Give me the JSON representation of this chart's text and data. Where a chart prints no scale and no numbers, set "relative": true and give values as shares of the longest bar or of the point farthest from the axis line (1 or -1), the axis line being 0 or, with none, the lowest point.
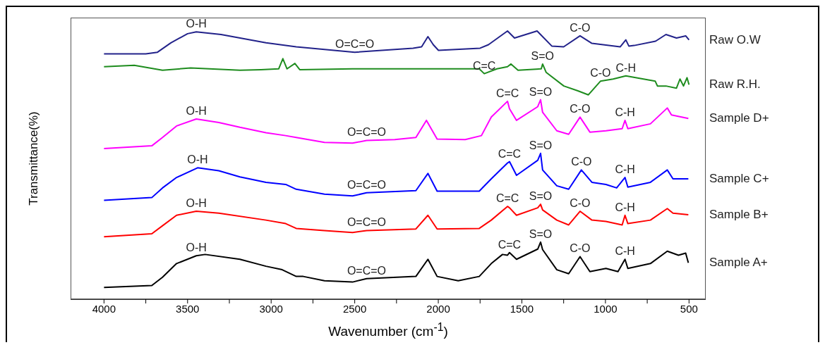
{
  "chart_data": {
    "type": "line",
    "relative": true,
    "xlabel": "Wavenumber (cm$^{-1}$)",
    "ylabel": "Transmittance(%)",
    "xlim": [
      4200,
      400
    ],
    "xticks": [
      4000,
      {
        "value": 3750,
        "label": null
      },
      3500,
      {
        "value": 3250,
        "label": null
      },
      3000,
      {
        "value": 2750,
        "label": null
      },
      2500,
      {
        "value": 2250,
        "label": null
      },
      2000,
      {
        "value": 1750,
        "label": null
      },
      1500,
      {
        "value": 1250,
        "label": null
      },
      1000,
      {
        "value": 750,
        "label": null
      },
      500
    ],
    "grid": false,
    "marker": "none",
    "line_style": "solid",
    "series": [
      {
        "name": "Raw O.W",
        "color": "#22228a",
        "x": [
          4000,
          3750,
          3680,
          3600,
          3500,
          3448,
          3300,
          3031,
          2850,
          2500,
          2151,
          2100,
          2062,
          2030,
          1999,
          1750,
          1700,
          1586,
          1544,
          1409,
          1321,
          1250,
          1152,
          1081,
          912,
          878,
          860,
          828,
          700,
          638,
          575,
          520,
          500
        ],
        "values": [
          0.915,
          0.915,
          0.921,
          0.956,
          0.99,
          0.997,
          0.987,
          0.956,
          0.941,
          0.921,
          0.936,
          0.941,
          0.979,
          0.949,
          0.928,
          0.936,
          0.949,
          1.0,
          0.974,
          1.0,
          0.944,
          0.941,
          0.982,
          0.954,
          0.941,
          0.967,
          0.944,
          0.946,
          0.962,
          0.987,
          0.974,
          0.982,
          0.967
        ]
      },
      {
        "name": "Raw R.H.",
        "color": "#1e8c1e",
        "x": [
          4000,
          3819,
          3650,
          3482,
          3187,
          3061,
          2955,
          2930,
          2905,
          2858,
          2829,
          2513,
          2092,
          1755,
          1725,
          1649,
          1586,
          1565,
          1523,
          1384,
          1376,
          1355,
          1249,
          1165,
          1102,
          1030,
          954,
          878,
          702,
          689,
          638,
          575,
          554,
          533,
          512,
          500
        ],
        "values": [
          0.867,
          0.872,
          0.854,
          0.862,
          0.854,
          0.856,
          0.859,
          0.897,
          0.859,
          0.879,
          0.856,
          0.859,
          0.859,
          0.859,
          0.841,
          0.859,
          0.867,
          0.877,
          0.854,
          0.859,
          0.877,
          0.846,
          0.795,
          0.777,
          0.762,
          0.813,
          0.821,
          0.833,
          0.813,
          0.795,
          0.795,
          0.787,
          0.821,
          0.795,
          0.826,
          0.8
        ]
      },
      {
        "name": "Sample D+",
        "color": "#ff00ff",
        "x": [
          4000,
          3714,
          3650,
          3566,
          3448,
          3313,
          3187,
          3031,
          2913,
          2850,
          2681,
          2513,
          2429,
          2260,
          2134,
          2071,
          2007,
          1839,
          1742,
          1683,
          1586,
          1574,
          1532,
          1405,
          1388,
          1376,
          1291,
          1220,
          1152,
          1093,
          997,
          900,
          883,
          866,
          731,
          630,
          605,
          504
        ],
        "values": [
          0.562,
          0.572,
          0.603,
          0.646,
          0.672,
          0.659,
          0.641,
          0.621,
          0.61,
          0.603,
          0.585,
          0.582,
          0.592,
          0.595,
          0.603,
          0.667,
          0.597,
          0.595,
          0.61,
          0.679,
          0.738,
          0.71,
          0.667,
          0.718,
          0.744,
          0.697,
          0.628,
          0.615,
          0.679,
          0.623,
          0.628,
          0.636,
          0.667,
          0.636,
          0.654,
          0.713,
          0.687,
          0.674
        ]
      },
      {
        "name": "Sample C+",
        "color": "#0000ff",
        "x": [
          4000,
          3714,
          3650,
          3566,
          3440,
          3313,
          3187,
          3031,
          2913,
          2850,
          2681,
          2513,
          2429,
          2134,
          2062,
          2007,
          1755,
          1683,
          1586,
          1574,
          1532,
          1405,
          1388,
          1376,
          1291,
          1220,
          1144,
          1081,
          997,
          933,
          883,
          866,
          731,
          630,
          596,
          504
        ],
        "values": [
          0.369,
          0.379,
          0.415,
          0.454,
          0.49,
          0.479,
          0.456,
          0.436,
          0.428,
          0.41,
          0.392,
          0.385,
          0.397,
          0.405,
          0.469,
          0.403,
          0.403,
          0.449,
          0.508,
          0.513,
          0.462,
          0.518,
          0.544,
          0.482,
          0.423,
          0.41,
          0.482,
          0.436,
          0.428,
          0.415,
          0.454,
          0.418,
          0.436,
          0.482,
          0.449,
          0.449
        ]
      },
      {
        "name": "Sample B+",
        "color": "#ff0000",
        "x": [
          4000,
          3714,
          3650,
          3566,
          3448,
          3313,
          3031,
          2913,
          2850,
          2681,
          2513,
          2429,
          2134,
          2062,
          2007,
          1755,
          1683,
          1586,
          1574,
          1532,
          1405,
          1388,
          1376,
          1291,
          1220,
          1152,
          1081,
          997,
          900,
          883,
          866,
          731,
          630,
          596,
          504
        ],
        "values": [
          0.233,
          0.244,
          0.274,
          0.313,
          0.328,
          0.321,
          0.295,
          0.282,
          0.264,
          0.256,
          0.249,
          0.256,
          0.262,
          0.313,
          0.262,
          0.264,
          0.295,
          0.346,
          0.341,
          0.313,
          0.341,
          0.354,
          0.333,
          0.295,
          0.277,
          0.328,
          0.295,
          0.29,
          0.277,
          0.313,
          0.282,
          0.295,
          0.338,
          0.321,
          0.315
        ]
      },
      {
        "name": "Sample A+",
        "color": "#000000",
        "x": [
          4000,
          3714,
          3650,
          3566,
          3448,
          3395,
          3187,
          3031,
          2934,
          2850,
          2808,
          2681,
          2513,
          2429,
          2134,
          2062,
          2007,
          1881,
          1755,
          1683,
          1616,
          1586,
          1574,
          1532,
          1405,
          1388,
          1376,
          1291,
          1220,
          1152,
          1093,
          997,
          925,
          883,
          866,
          731,
          630,
          563,
          520,
          504
        ],
        "values": [
          0.044,
          0.051,
          0.082,
          0.133,
          0.162,
          0.167,
          0.149,
          0.123,
          0.11,
          0.085,
          0.085,
          0.069,
          0.064,
          0.077,
          0.085,
          0.149,
          0.085,
          0.069,
          0.085,
          0.133,
          0.167,
          0.164,
          0.174,
          0.149,
          0.187,
          0.213,
          0.185,
          0.11,
          0.095,
          0.159,
          0.103,
          0.115,
          0.103,
          0.149,
          0.115,
          0.133,
          0.179,
          0.164,
          0.172,
          0.136
        ]
      }
    ],
    "annotations": [
      {
        "text": "O-H",
        "x": 3448,
        "y": 0.997
      },
      {
        "text": "O=C=O",
        "x": 2500,
        "y": 0.921
      },
      {
        "text": "C-O",
        "x": 1152,
        "y": 0.982
      },
      {
        "text": "C=C",
        "x": 1725,
        "y": 0.841
      },
      {
        "text": "S=O",
        "x": 1376,
        "y": 0.877
      },
      {
        "text": "C-O",
        "x": 1030,
        "y": 0.813
      },
      {
        "text": "C-H",
        "x": 878,
        "y": 0.833
      },
      {
        "text": "O-H",
        "x": 3448,
        "y": 0.672
      },
      {
        "text": "O=C=O",
        "x": 2429,
        "y": 0.592
      },
      {
        "text": "C=C",
        "x": 1586,
        "y": 0.738
      },
      {
        "text": "S=O",
        "x": 1388,
        "y": 0.744
      },
      {
        "text": "C-O",
        "x": 1152,
        "y": 0.679
      },
      {
        "text": "C-H",
        "x": 883,
        "y": 0.667
      },
      {
        "text": "O-H",
        "x": 3440,
        "y": 0.49
      },
      {
        "text": "O=C=O",
        "x": 2429,
        "y": 0.397
      },
      {
        "text": "C=C",
        "x": 1574,
        "y": 0.513
      },
      {
        "text": "S=O",
        "x": 1388,
        "y": 0.544
      },
      {
        "text": "C-O",
        "x": 1144,
        "y": 0.482
      },
      {
        "text": "C-H",
        "x": 883,
        "y": 0.454
      },
      {
        "text": "O-H",
        "x": 3448,
        "y": 0.328
      },
      {
        "text": "O=C=O",
        "x": 2429,
        "y": 0.256
      },
      {
        "text": "C=C",
        "x": 1586,
        "y": 0.346
      },
      {
        "text": "S=O",
        "x": 1388,
        "y": 0.354
      },
      {
        "text": "C-O",
        "x": 1152,
        "y": 0.328
      },
      {
        "text": "C-H",
        "x": 883,
        "y": 0.313
      },
      {
        "text": "O-H",
        "x": 3448,
        "y": 0.162
      },
      {
        "text": "O=C=O",
        "x": 2429,
        "y": 0.077
      },
      {
        "text": "C=C",
        "x": 1574,
        "y": 0.174
      },
      {
        "text": "S=O",
        "x": 1388,
        "y": 0.213
      },
      {
        "text": "C-O",
        "x": 1152,
        "y": 0.159
      },
      {
        "text": "C-H",
        "x": 883,
        "y": 0.149
      }
    ]
  }
}
